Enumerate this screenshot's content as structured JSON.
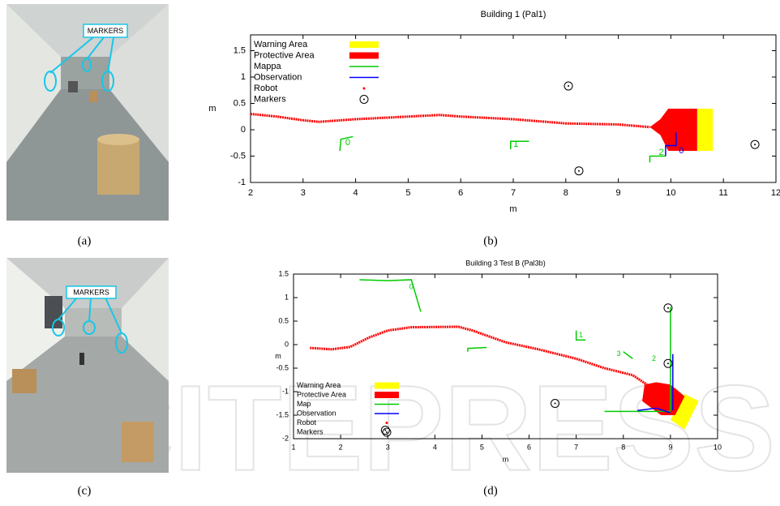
{
  "watermark": {
    "text": "SCITEPRESS"
  },
  "photos": [
    {
      "label": "MARKERS",
      "caption": "(a)"
    },
    {
      "label": "MARKERS",
      "caption": "(c)"
    }
  ],
  "captions": [
    "(b)",
    "(d)"
  ],
  "chart_data": [
    {
      "type": "line",
      "title": "Building 1 (Pal1)",
      "xlabel": "m",
      "ylabel": "m",
      "xlim": [
        2,
        12
      ],
      "ylim": [
        -1,
        1.8
      ],
      "xticks": [
        2,
        3,
        4,
        5,
        6,
        7,
        8,
        9,
        10,
        11,
        12
      ],
      "yticks": [
        -1,
        -0.5,
        0,
        0.5,
        1,
        1.5
      ],
      "legend": "upper left",
      "series": [
        {
          "name": "Warning Area",
          "color": "#ffff00",
          "type": "area",
          "x": [
            10.5,
            10.8,
            10.8,
            10.5
          ],
          "y": [
            0.4,
            0.4,
            -0.4,
            -0.4
          ]
        },
        {
          "name": "Protective Area",
          "color": "#ff0000",
          "type": "area",
          "x": [
            9.6,
            9.8,
            9.95,
            10.5,
            10.5,
            9.95,
            9.8
          ],
          "y": [
            0.05,
            0.2,
            0.4,
            0.4,
            -0.4,
            -0.4,
            -0.1
          ]
        },
        {
          "name": "Mappa",
          "color": "#00cc00",
          "type": "line",
          "x": [
            3.7,
            3.72,
            3.95,
            null,
            6.95,
            6.95,
            7.3,
            null,
            9.6,
            9.6,
            9.9
          ],
          "y": [
            -0.4,
            -0.18,
            -0.13,
            null,
            -0.37,
            -0.22,
            -0.22,
            null,
            -0.62,
            -0.5,
            -0.5
          ]
        },
        {
          "name": "Observation",
          "color": "#0000ff",
          "type": "line",
          "x": [
            9.9,
            9.9,
            10.1,
            10.1
          ],
          "y": [
            -0.5,
            -0.3,
            -0.3,
            -0.05
          ]
        },
        {
          "name": "Robot",
          "color": "#ff0000",
          "type": "path",
          "x": [
            2.0,
            2.5,
            3.0,
            3.3,
            4.0,
            5.0,
            5.6,
            6.0,
            7.0,
            8.0,
            9.0,
            9.6
          ],
          "y": [
            0.3,
            0.25,
            0.18,
            0.15,
            0.2,
            0.25,
            0.28,
            0.25,
            0.2,
            0.12,
            0.1,
            0.05
          ]
        },
        {
          "name": "Markers",
          "color": "#000000",
          "type": "scatter",
          "x": [
            8.05,
            8.25,
            11.6
          ],
          "y": [
            0.83,
            -0.78,
            -0.28
          ]
        }
      ],
      "annotations": [
        {
          "text": "0",
          "x": 3.85,
          "y": -0.25,
          "color": "#00cc00"
        },
        {
          "text": "1",
          "x": 7.05,
          "y": -0.28,
          "color": "#00cc00"
        },
        {
          "text": "2",
          "x": 9.82,
          "y": -0.43,
          "color": "#00cc00"
        },
        {
          "text": "0",
          "x": 10.2,
          "y": -0.4,
          "color": "#0000ff"
        }
      ]
    },
    {
      "type": "line",
      "title": "Building 3 Test B (Pal3b)",
      "xlabel": "m",
      "ylabel": "m",
      "xlim": [
        1,
        10
      ],
      "ylim": [
        -2,
        1.5
      ],
      "xticks": [
        1,
        2,
        3,
        4,
        5,
        6,
        7,
        8,
        9,
        10
      ],
      "yticks": [
        -2,
        -1.5,
        -1,
        -0.5,
        0,
        0.5,
        1,
        1.5
      ],
      "legend": "lower left",
      "series": [
        {
          "name": "Warning Area",
          "color": "#ffff00",
          "type": "area",
          "x": [
            9.3,
            9.6,
            9.3,
            9.0
          ],
          "y": [
            -1.05,
            -1.2,
            -1.8,
            -1.6
          ]
        },
        {
          "name": "Protective Area",
          "color": "#ff0000",
          "type": "area",
          "x": [
            8.45,
            8.7,
            9.0,
            9.3,
            9.1,
            8.8,
            8.4
          ],
          "y": [
            -0.85,
            -0.8,
            -0.85,
            -1.1,
            -1.5,
            -1.5,
            -1.2
          ]
        },
        {
          "name": "Map",
          "color": "#00cc00",
          "type": "line",
          "x": [
            2.4,
            3.0,
            3.5,
            3.7,
            null,
            4.7,
            4.7,
            5.1,
            null,
            7.0,
            7.0,
            7.2,
            null,
            8.0,
            8.2,
            null,
            9.0,
            9.0,
            null,
            7.6,
            9.0
          ],
          "y": [
            1.38,
            1.36,
            1.38,
            0.7,
            null,
            -0.15,
            -0.08,
            -0.06,
            null,
            0.3,
            0.1,
            0.1,
            null,
            -0.15,
            -0.3,
            null,
            0.8,
            -1.4,
            null,
            -1.42,
            -1.42
          ]
        },
        {
          "name": "Observation",
          "color": "#0000ff",
          "type": "line",
          "x": [
            8.3,
            8.7,
            9.0,
            null,
            9.05,
            9.05
          ],
          "y": [
            -1.4,
            -1.35,
            -1.45,
            null,
            -0.2,
            -1.4
          ]
        },
        {
          "name": "Robot",
          "color": "#ff0000",
          "type": "path",
          "x": [
            1.35,
            1.8,
            2.2,
            2.6,
            3.0,
            3.5,
            4.5,
            4.8,
            5.5,
            6.2,
            7.0,
            7.6,
            8.2,
            8.5
          ],
          "y": [
            -0.07,
            -0.1,
            -0.05,
            0.15,
            0.3,
            0.37,
            0.38,
            0.3,
            0.05,
            -0.1,
            -0.3,
            -0.5,
            -0.65,
            -0.85
          ]
        },
        {
          "name": "Markers",
          "color": "#000000",
          "type": "scatter",
          "x": [
            2.95,
            6.55,
            8.95,
            8.95
          ],
          "y": [
            -1.82,
            -1.25,
            0.78,
            -0.4
          ]
        }
      ],
      "annotations": [
        {
          "text": "0",
          "x": 3.5,
          "y": 1.22,
          "color": "#00cc00"
        },
        {
          "text": "1",
          "x": 7.1,
          "y": 0.2,
          "color": "#00cc00"
        },
        {
          "text": "3",
          "x": 7.9,
          "y": -0.2,
          "color": "#00cc00"
        },
        {
          "text": "2",
          "x": 8.65,
          "y": -0.3,
          "color": "#00cc00"
        }
      ]
    }
  ]
}
